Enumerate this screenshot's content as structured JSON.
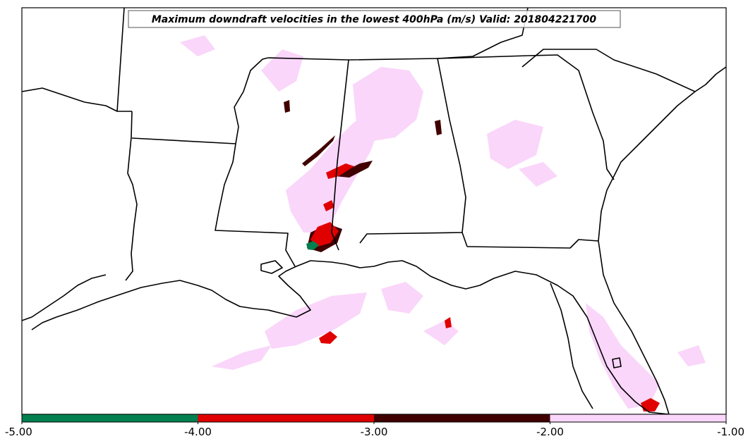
{
  "map": {
    "title": "Maximum downdraft velocities in the lowest 400hPa (m/s) Valid: 201804221700",
    "colors": {
      "frame": "#000000",
      "land_background": "#ffffff",
      "boundary": "#000000"
    }
  },
  "chart_data": {
    "type": "heatmap",
    "title": "Maximum downdraft velocities in the lowest 400hPa (m/s) Valid: 201804221700",
    "colorbar": {
      "tick_labels": [
        "-5.00",
        "-4.00",
        "-3.00",
        "-2.00",
        "-1.00"
      ],
      "ticks": [
        -5,
        -4,
        -3,
        -2,
        -1
      ],
      "range": [
        -5,
        -1
      ],
      "bins": [
        {
          "from": -5,
          "to": -4,
          "color": "#007f4f"
        },
        {
          "from": -4,
          "to": -3,
          "color": "#e00000"
        },
        {
          "from": -3,
          "to": -2,
          "color": "#400000"
        },
        {
          "from": -2,
          "to": -1,
          "color": "#fad6fa"
        }
      ]
    }
  }
}
